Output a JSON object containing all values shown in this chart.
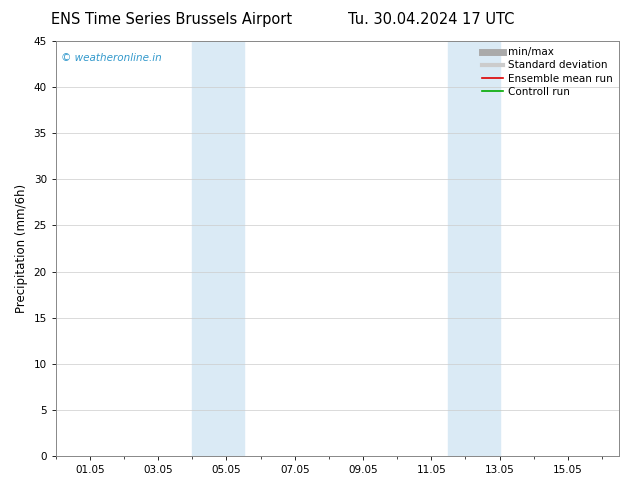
{
  "title_left": "ENS Time Series Brussels Airport",
  "title_right": "Tu. 30.04.2024 17 UTC",
  "ylabel": "Precipitation (mm/6h)",
  "ylim": [
    0,
    45
  ],
  "yticks": [
    0,
    5,
    10,
    15,
    20,
    25,
    30,
    35,
    40,
    45
  ],
  "xtick_labels": [
    "01.05",
    "03.05",
    "05.05",
    "07.05",
    "09.05",
    "11.05",
    "13.05",
    "15.05"
  ],
  "xtick_positions": [
    1,
    3,
    5,
    7,
    9,
    11,
    13,
    15
  ],
  "xlim": [
    0,
    16.5
  ],
  "shade_bands": [
    {
      "x_start": 4.0,
      "x_end": 5.5
    },
    {
      "x_start": 11.5,
      "x_end": 13.0
    }
  ],
  "shade_color": "#daeaf5",
  "watermark": "© weatheronline.in",
  "watermark_color": "#3399cc",
  "background_color": "#ffffff",
  "plot_bg_color": "#ffffff",
  "grid_color": "#cccccc",
  "legend_items": [
    {
      "label": "min/max",
      "color": "#aaaaaa",
      "lw": 5,
      "style": "solid"
    },
    {
      "label": "Standard deviation",
      "color": "#cccccc",
      "lw": 3,
      "style": "solid"
    },
    {
      "label": "Ensemble mean run",
      "color": "#dd0000",
      "lw": 1.2,
      "style": "solid"
    },
    {
      "label": "Controll run",
      "color": "#00aa00",
      "lw": 1.2,
      "style": "solid"
    }
  ],
  "title_fontsize": 10.5,
  "ylabel_fontsize": 8.5,
  "tick_fontsize": 7.5,
  "legend_fontsize": 7.5,
  "watermark_fontsize": 7.5
}
